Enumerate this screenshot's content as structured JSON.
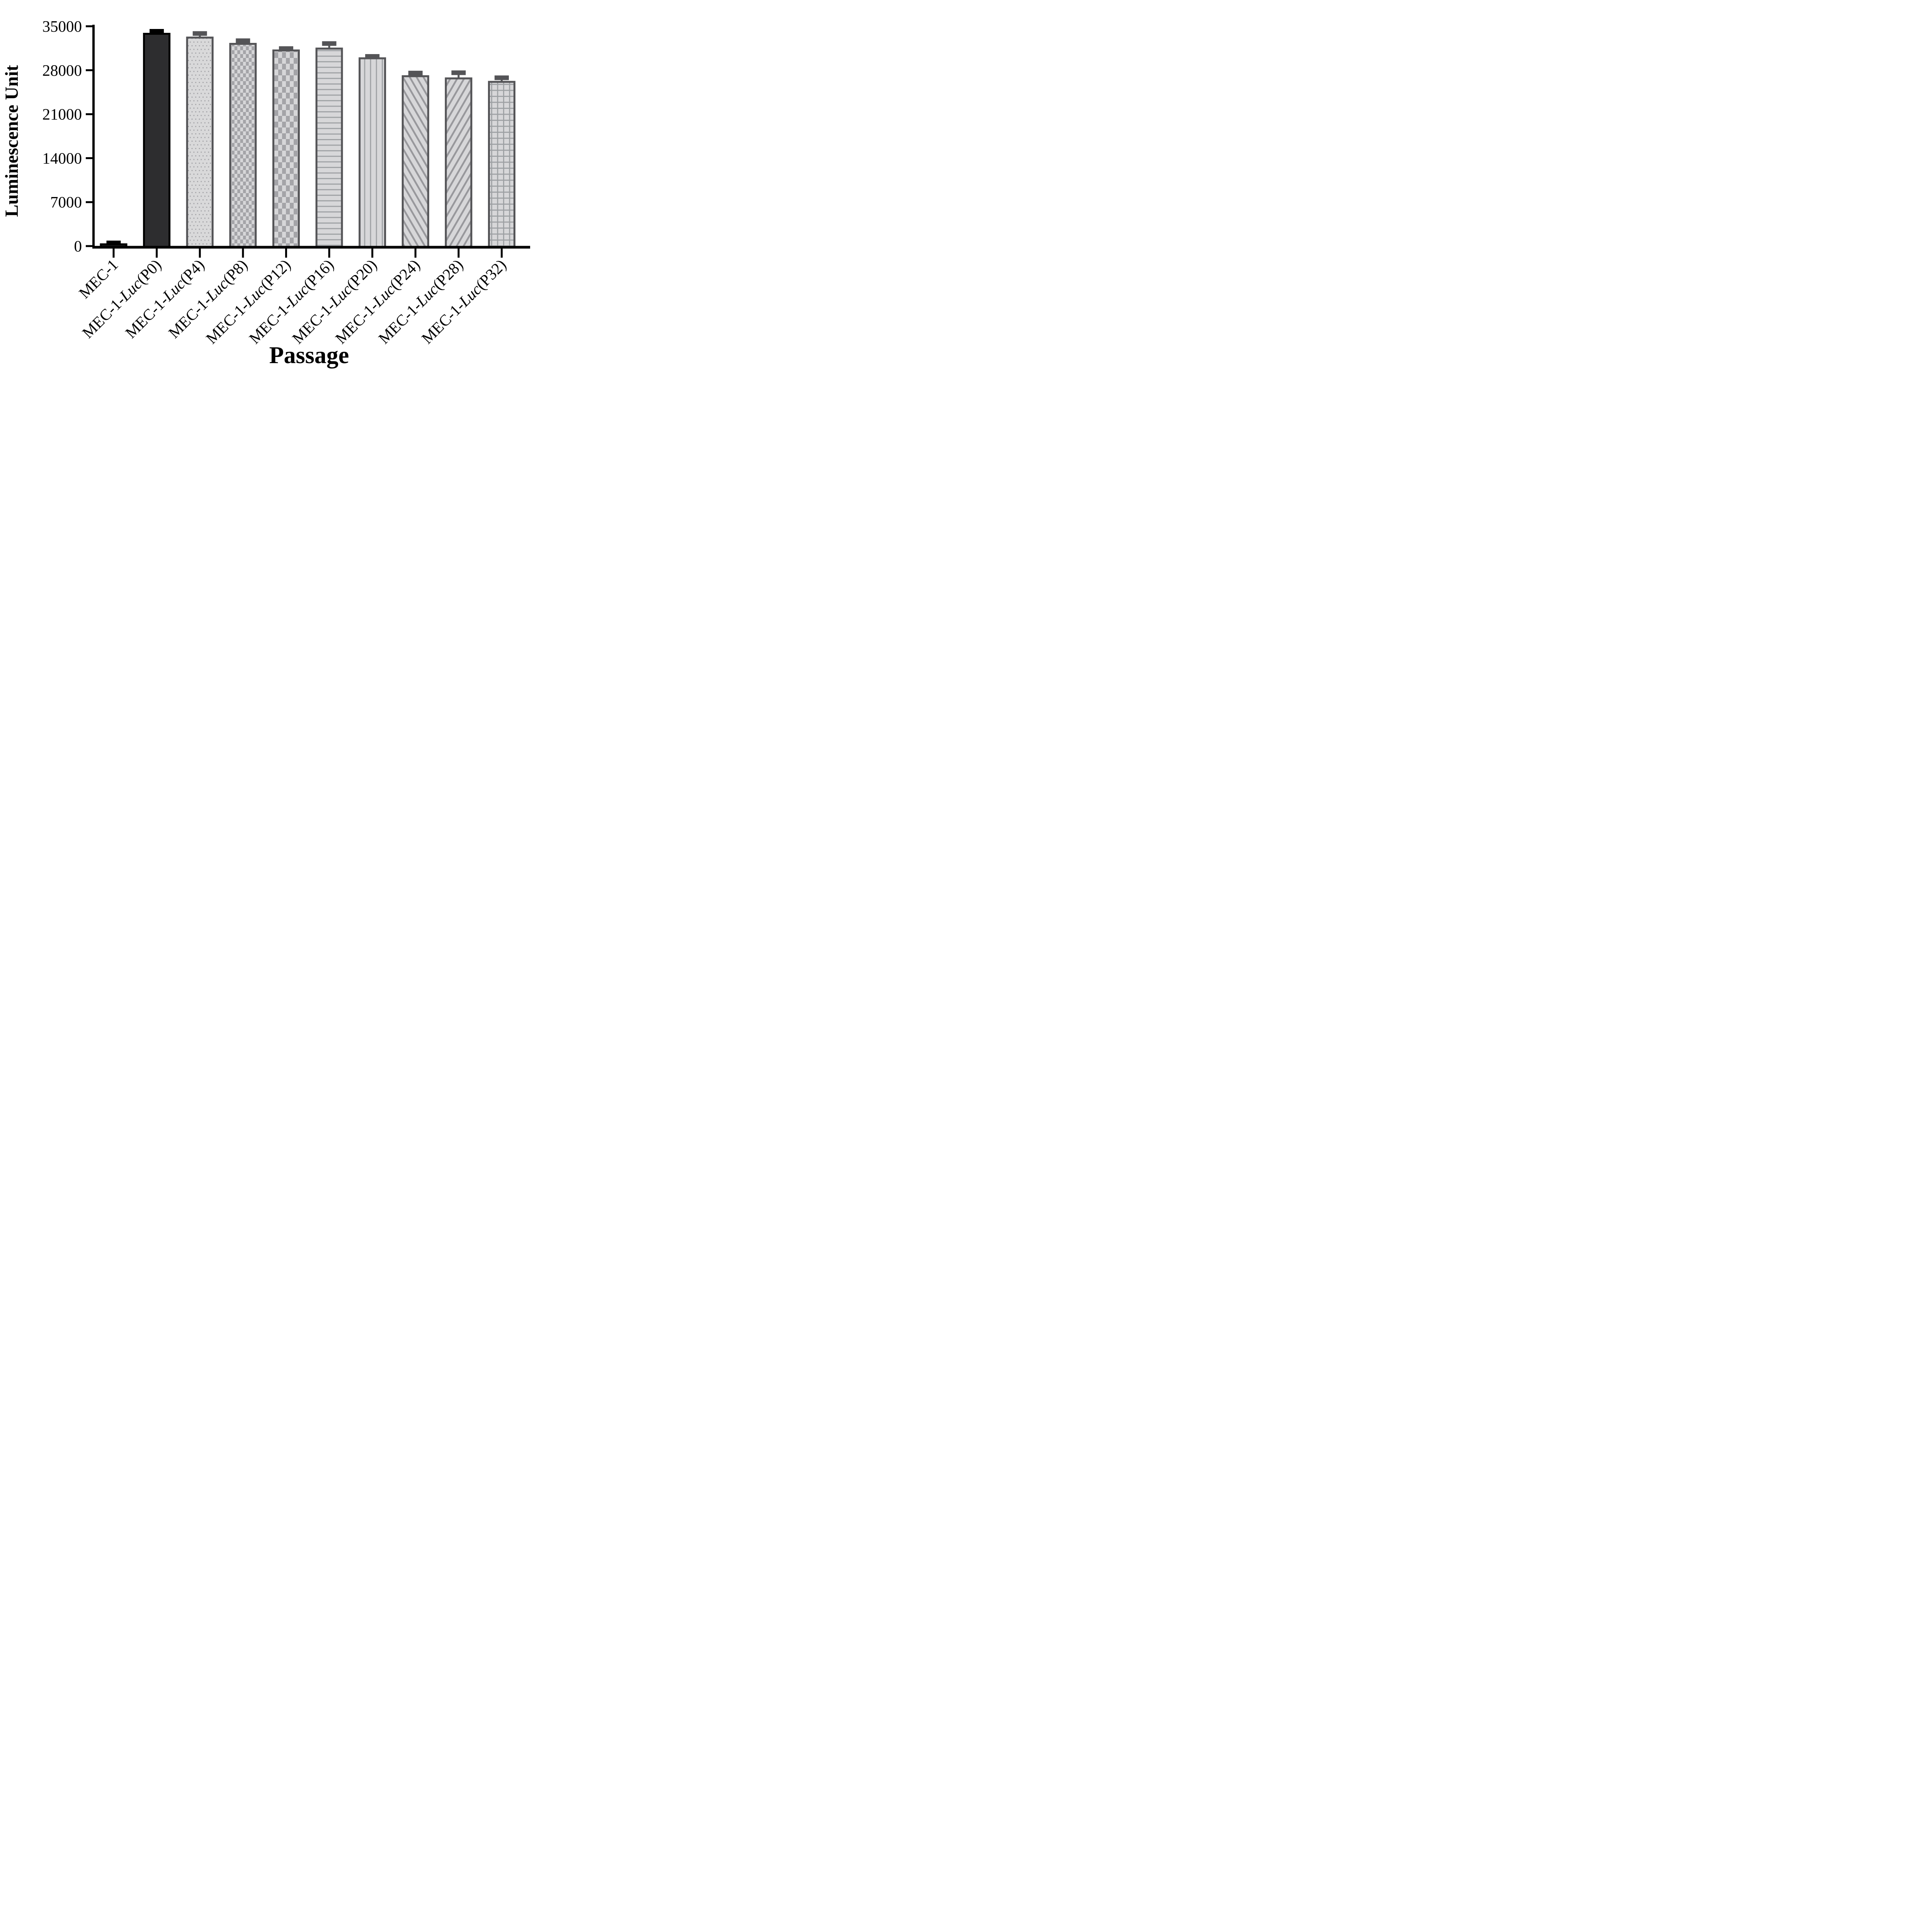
{
  "figure": {
    "background": "#ffffff",
    "axis_color": "#000000"
  },
  "chart_data": {
    "type": "bar",
    "title": "",
    "xlabel": "Passage",
    "ylabel": "Luminescence Unit",
    "ylim": [
      0,
      35000
    ],
    "yticks": [
      0,
      7000,
      14000,
      21000,
      28000,
      35000
    ],
    "grid": "off",
    "legend": "none",
    "categories": [
      "MEC-1",
      "MEC-1-Luc(P0)",
      "MEC-1-Luc(P4)",
      "MEC-1-Luc(P8)",
      "MEC-1-Luc(P12)",
      "MEC-1-Luc(P16)",
      "MEC-1-Luc(P20)",
      "MEC-1-Luc(P24)",
      "MEC-1-Luc(P28)",
      "MEC-1-Luc(P32)"
    ],
    "category_parts": [
      {
        "pre": "MEC-1",
        "luc": "",
        "post": ""
      },
      {
        "pre": "MEC-1-",
        "luc": "Luc",
        "post": "(P0)"
      },
      {
        "pre": "MEC-1-",
        "luc": "Luc",
        "post": "(P4)"
      },
      {
        "pre": "MEC-1-",
        "luc": "Luc",
        "post": "(P8)"
      },
      {
        "pre": "MEC-1-",
        "luc": "Luc",
        "post": "(P12)"
      },
      {
        "pre": "MEC-1-",
        "luc": "Luc",
        "post": "(P16)"
      },
      {
        "pre": "MEC-1-",
        "luc": "Luc",
        "post": "(P20)"
      },
      {
        "pre": "MEC-1-",
        "luc": "Luc",
        "post": "(P24)"
      },
      {
        "pre": "MEC-1-",
        "luc": "Luc",
        "post": "(P28)"
      },
      {
        "pre": "MEC-1-",
        "luc": "Luc",
        "post": "(P32)"
      }
    ],
    "series": [
      {
        "name": "Luminescence Unit",
        "values": [
          280,
          33800,
          33200,
          32200,
          31150,
          31450,
          29900,
          27050,
          26700,
          26150
        ],
        "errors_plus": [
          220,
          400,
          650,
          500,
          300,
          800,
          300,
          500,
          900,
          650
        ]
      }
    ],
    "bar_styles": [
      {
        "pattern": "solid",
        "fill": "#1b1b1b",
        "stroke": "#000000",
        "error_color": "#000000"
      },
      {
        "pattern": "solid",
        "fill": "#2d2d2f",
        "stroke": "#000000",
        "error_color": "#000000"
      },
      {
        "pattern": "dots",
        "stroke": "#545457",
        "error_color": "#545457"
      },
      {
        "pattern": "check-small",
        "stroke": "#545457",
        "error_color": "#545457"
      },
      {
        "pattern": "check-large",
        "stroke": "#545457",
        "error_color": "#545457"
      },
      {
        "pattern": "hlines",
        "stroke": "#545457",
        "error_color": "#545457"
      },
      {
        "pattern": "vlines",
        "stroke": "#545457",
        "error_color": "#545457"
      },
      {
        "pattern": "diag-up",
        "stroke": "#545457",
        "error_color": "#545457"
      },
      {
        "pattern": "diag-down",
        "stroke": "#545457",
        "error_color": "#545457"
      },
      {
        "pattern": "grid",
        "stroke": "#545457",
        "error_color": "#545457"
      }
    ],
    "pattern_colors": {
      "light_fill": "#d7d7d9",
      "mark_gray": "#a0a0a4",
      "stripe_gray": "#98989c"
    }
  }
}
